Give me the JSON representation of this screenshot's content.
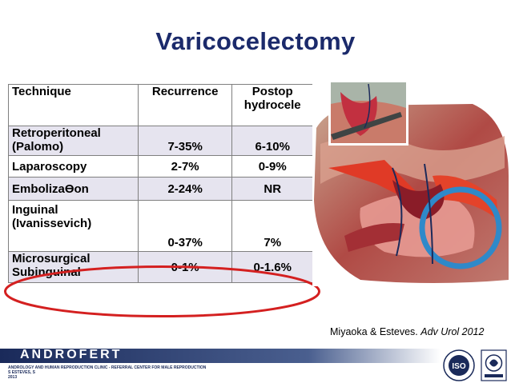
{
  "slide": {
    "title": "Varicocelectomy",
    "table": {
      "headers": [
        "Technique",
        "Recurrence",
        "Postop hydrocele"
      ],
      "rows": [
        {
          "technique": "Retroperitoneal (Palomo)",
          "recurrence": "7-35%",
          "hydrocele": "6-10%"
        },
        {
          "technique": "Laparoscopy",
          "recurrence": "2-7%",
          "hydrocele": "0-9%"
        },
        {
          "technique": "Embolizaϴon",
          "recurrence": "2-24%",
          "hydrocele": "NR"
        },
        {
          "technique": "Inguinal (Ivanissevich)",
          "recurrence": "0-37%",
          "hydrocele": "7%"
        },
        {
          "technique": "Microsurgical Subinguinal",
          "recurrence": "0-1%",
          "hydrocele": "0-1.6%"
        }
      ]
    },
    "citation": {
      "authors": "Miyaoka & Esteves.",
      "journal": "Adv Urol 2012"
    },
    "footer": {
      "brand": "ANDROFERT",
      "line1": "ANDROLOGY AND HUMAN REPRODUCTION CLINIC - REFERRAL CENTER FOR MALE REPRODUCTION",
      "line2": "S ESTEVES, S",
      "line3": "2013",
      "iso_label": "ISO"
    },
    "colors": {
      "title": "#1b2a6b",
      "highlight_oval": "#d42020",
      "table_odd_row": "#e6e4ef"
    }
  }
}
